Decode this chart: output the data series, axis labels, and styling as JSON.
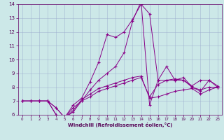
{
  "xlabel": "Windchill (Refroidissement éolien,°C)",
  "xlim": [
    -0.5,
    23.5
  ],
  "ylim": [
    6,
    14
  ],
  "xticks": [
    0,
    1,
    2,
    3,
    4,
    5,
    6,
    7,
    8,
    9,
    10,
    11,
    12,
    13,
    14,
    15,
    16,
    17,
    18,
    19,
    20,
    21,
    22,
    23
  ],
  "yticks": [
    6,
    7,
    8,
    9,
    10,
    11,
    12,
    13,
    14
  ],
  "bg_color": "#cce8e8",
  "line_color": "#880088",
  "grid_color": "#99aacc",
  "lines": [
    {
      "x": [
        0,
        1,
        2,
        3,
        4,
        5,
        6,
        7,
        8,
        9,
        10,
        11,
        12,
        13,
        14,
        15,
        16,
        17,
        18,
        19,
        20,
        21,
        22,
        23
      ],
      "y": [
        7,
        7,
        7,
        7,
        6,
        5.8,
        6.3,
        7.1,
        7.5,
        7.9,
        8.1,
        8.3,
        8.5,
        8.7,
        8.8,
        7.2,
        7.3,
        7.5,
        7.7,
        7.8,
        7.9,
        7.5,
        7.8,
        8.0
      ]
    },
    {
      "x": [
        0,
        1,
        2,
        3,
        4,
        5,
        6,
        7,
        8,
        9,
        10,
        11,
        12,
        13,
        14,
        15,
        16,
        17,
        18,
        19,
        20,
        21,
        22,
        23
      ],
      "y": [
        7,
        7,
        7,
        7,
        6.5,
        5.8,
        6.7,
        7.2,
        8.4,
        9.8,
        11.8,
        11.6,
        12.0,
        12.9,
        14.0,
        13.3,
        8.5,
        8.5,
        8.5,
        8.5,
        8.1,
        8.5,
        8.5,
        8.0
      ]
    },
    {
      "x": [
        0,
        1,
        2,
        3,
        4,
        5,
        6,
        7,
        8,
        9,
        10,
        11,
        12,
        13,
        14,
        15,
        16,
        17,
        18,
        19,
        20,
        21,
        22,
        23
      ],
      "y": [
        7,
        7,
        7,
        7,
        6.5,
        5.8,
        6.5,
        7.0,
        7.8,
        8.5,
        9.0,
        9.5,
        10.5,
        12.8,
        14.2,
        6.7,
        8.5,
        9.5,
        8.5,
        8.7,
        8.0,
        7.7,
        8.5,
        8.1
      ]
    },
    {
      "x": [
        0,
        1,
        2,
        3,
        4,
        5,
        6,
        7,
        8,
        9,
        10,
        11,
        12,
        13,
        14,
        15,
        16,
        17,
        18,
        19,
        20,
        21,
        22,
        23
      ],
      "y": [
        7,
        7,
        7,
        7,
        6,
        5.8,
        6.2,
        7.0,
        7.3,
        7.7,
        7.9,
        8.1,
        8.3,
        8.5,
        8.7,
        7.3,
        8.2,
        8.5,
        8.6,
        8.5,
        8.0,
        7.8,
        8.0,
        8.0
      ]
    }
  ]
}
